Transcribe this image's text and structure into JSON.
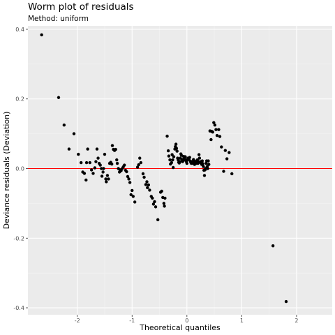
{
  "chart_data": {
    "type": "scatter",
    "title": "Worm plot of residuals",
    "subtitle": "Method: uniform",
    "xlabel": "Theoretical quantiles",
    "ylabel": "Deviance residuals (Deviation)",
    "xlim": [
      -2.9,
      2.65
    ],
    "ylim": [
      -0.42,
      0.41
    ],
    "xticks": [
      -2,
      -1,
      0,
      1,
      2
    ],
    "xtick_labels": [
      "-2",
      "-1",
      "0",
      "1",
      "2"
    ],
    "yticks": [
      -0.4,
      -0.2,
      0.0,
      0.2,
      0.4
    ],
    "ytick_labels": [
      "-0.4",
      "-0.2",
      "0.0",
      "0.2",
      "0.4"
    ],
    "grid": true,
    "reference_line": {
      "y": 0,
      "color": "#ff0000"
    },
    "colors": {
      "panel": "#ebebeb",
      "grid_major": "#ffffff",
      "grid_minor": "#f4f4f4",
      "points": "#000000"
    },
    "points": [
      [
        -2.65,
        0.384
      ],
      [
        -2.34,
        0.204
      ],
      [
        -2.24,
        0.125
      ],
      [
        -2.15,
        0.056
      ],
      [
        -2.06,
        0.1
      ],
      [
        -1.98,
        0.041
      ],
      [
        -1.93,
        0.017
      ],
      [
        -1.9,
        -0.01
      ],
      [
        -1.87,
        -0.014
      ],
      [
        -1.84,
        -0.033
      ],
      [
        -1.83,
        0.017
      ],
      [
        -1.81,
        0.056
      ],
      [
        -1.77,
        0.017
      ],
      [
        -1.74,
        -0.004
      ],
      [
        -1.71,
        -0.014
      ],
      [
        -1.68,
        0.002
      ],
      [
        -1.66,
        0.02
      ],
      [
        -1.64,
        0.056
      ],
      [
        -1.62,
        0.03
      ],
      [
        -1.6,
        0.015
      ],
      [
        -1.58,
        0.01
      ],
      [
        -1.56,
        0.0
      ],
      [
        -1.55,
        -0.022
      ],
      [
        -1.53,
        -0.01
      ],
      [
        -1.52,
        0.0
      ],
      [
        -1.5,
        0.041
      ],
      [
        -1.48,
        -0.03
      ],
      [
        -1.47,
        -0.038
      ],
      [
        -1.45,
        -0.02
      ],
      [
        -1.43,
        -0.03
      ],
      [
        -1.41,
        0.015
      ],
      [
        -1.39,
        0.018
      ],
      [
        -1.37,
        0.013
      ],
      [
        -1.36,
        0.066
      ],
      [
        -1.34,
        0.055
      ],
      [
        -1.32,
        0.052
      ],
      [
        -1.3,
        0.055
      ],
      [
        -1.28,
        0.025
      ],
      [
        -1.27,
        0.015
      ],
      [
        -1.25,
        0.0
      ],
      [
        -1.23,
        -0.01
      ],
      [
        -1.22,
        -0.004
      ],
      [
        -1.2,
        -0.006
      ],
      [
        -1.18,
        0.0
      ],
      [
        -1.16,
        0.005
      ],
      [
        -1.14,
        0.01
      ],
      [
        -1.12,
        -0.005
      ],
      [
        -1.1,
        -0.009
      ],
      [
        -1.08,
        -0.023
      ],
      [
        -1.06,
        -0.03
      ],
      [
        -1.04,
        -0.04
      ],
      [
        -1.02,
        -0.075
      ],
      [
        -1.0,
        -0.063
      ],
      [
        -0.98,
        -0.08
      ],
      [
        -0.95,
        -0.096
      ],
      [
        -0.9,
        0.004
      ],
      [
        -0.88,
        0.011
      ],
      [
        -0.86,
        0.03
      ],
      [
        -0.84,
        0.017
      ],
      [
        -0.8,
        -0.015
      ],
      [
        -0.78,
        -0.025
      ],
      [
        -0.75,
        -0.046
      ],
      [
        -0.73,
        -0.038
      ],
      [
        -0.72,
        -0.055
      ],
      [
        -0.7,
        -0.047
      ],
      [
        -0.68,
        -0.062
      ],
      [
        -0.65,
        -0.08
      ],
      [
        -0.63,
        -0.085
      ],
      [
        -0.61,
        -0.102
      ],
      [
        -0.59,
        -0.095
      ],
      [
        -0.57,
        -0.11
      ],
      [
        -0.53,
        -0.147
      ],
      [
        -0.48,
        -0.068
      ],
      [
        -0.46,
        -0.065
      ],
      [
        -0.44,
        -0.083
      ],
      [
        -0.42,
        -0.1
      ],
      [
        -0.41,
        -0.108
      ],
      [
        -0.4,
        -0.085
      ],
      [
        -0.36,
        0.093
      ],
      [
        -0.34,
        0.051
      ],
      [
        -0.33,
        0.036
      ],
      [
        -0.31,
        0.025
      ],
      [
        -0.3,
        0.013
      ],
      [
        -0.28,
        0.017
      ],
      [
        -0.27,
        0.04
      ],
      [
        -0.26,
        0.025
      ],
      [
        -0.25,
        0.003
      ],
      [
        -0.24,
        0.034
      ],
      [
        -0.22,
        0.056
      ],
      [
        -0.21,
        0.063
      ],
      [
        -0.2,
        0.07
      ],
      [
        -0.19,
        0.058
      ],
      [
        -0.18,
        0.05
      ],
      [
        -0.17,
        0.03
      ],
      [
        -0.16,
        0.025
      ],
      [
        -0.15,
        0.018
      ],
      [
        -0.14,
        0.016
      ],
      [
        -0.13,
        0.02
      ],
      [
        -0.12,
        0.03
      ],
      [
        -0.11,
        0.042
      ],
      [
        -0.1,
        0.038
      ],
      [
        -0.09,
        0.026
      ],
      [
        -0.08,
        0.02
      ],
      [
        -0.07,
        0.022
      ],
      [
        -0.06,
        0.035
      ],
      [
        -0.05,
        0.03
      ],
      [
        -0.04,
        0.025
      ],
      [
        -0.03,
        0.034
      ],
      [
        -0.02,
        0.025
      ],
      [
        -0.01,
        0.02
      ],
      [
        0.0,
        0.015
      ],
      [
        0.01,
        0.025
      ],
      [
        0.02,
        0.03
      ],
      [
        0.03,
        0.028
      ],
      [
        0.04,
        0.03
      ],
      [
        0.05,
        0.032
      ],
      [
        0.06,
        0.022
      ],
      [
        0.07,
        0.018
      ],
      [
        0.08,
        0.015
      ],
      [
        0.09,
        0.018
      ],
      [
        0.1,
        0.02
      ],
      [
        0.11,
        0.015
      ],
      [
        0.12,
        0.026
      ],
      [
        0.13,
        0.022
      ],
      [
        0.14,
        0.012
      ],
      [
        0.15,
        0.018
      ],
      [
        0.16,
        0.015
      ],
      [
        0.17,
        0.015
      ],
      [
        0.18,
        0.022
      ],
      [
        0.19,
        0.025
      ],
      [
        0.2,
        0.015
      ],
      [
        0.21,
        0.02
      ],
      [
        0.22,
        0.04
      ],
      [
        0.23,
        0.03
      ],
      [
        0.24,
        0.018
      ],
      [
        0.25,
        0.02
      ],
      [
        0.26,
        0.015
      ],
      [
        0.27,
        0.012
      ],
      [
        0.28,
        0.022
      ],
      [
        0.29,
        0.014
      ],
      [
        0.3,
        0.006
      ],
      [
        0.31,
        -0.005
      ],
      [
        0.32,
        -0.02
      ],
      [
        0.33,
        -0.004
      ],
      [
        0.34,
        0.0
      ],
      [
        0.35,
        0.015
      ],
      [
        0.36,
        0.022
      ],
      [
        0.37,
        0.006
      ],
      [
        0.38,
        0.0
      ],
      [
        0.39,
        0.022
      ],
      [
        0.4,
        0.012
      ],
      [
        0.42,
        0.108
      ],
      [
        0.44,
        0.083
      ],
      [
        0.45,
        0.107
      ],
      [
        0.47,
        0.105
      ],
      [
        0.49,
        0.132
      ],
      [
        0.51,
        0.125
      ],
      [
        0.53,
        0.112
      ],
      [
        0.55,
        0.095
      ],
      [
        0.58,
        0.112
      ],
      [
        0.6,
        0.092
      ],
      [
        0.63,
        0.062
      ],
      [
        0.67,
        -0.008
      ],
      [
        0.7,
        0.052
      ],
      [
        0.73,
        0.028
      ],
      [
        0.77,
        0.046
      ],
      [
        0.82,
        -0.015
      ],
      [
        1.57,
        -0.222
      ],
      [
        1.81,
        -0.382
      ]
    ]
  }
}
